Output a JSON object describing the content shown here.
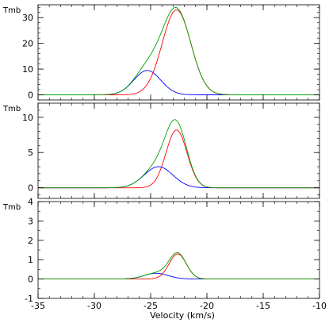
{
  "chart_data": {
    "type": "line",
    "xlabel": "Velocity (km/s)",
    "xlim": [
      -35,
      -10
    ],
    "xticks": [
      -35,
      -30,
      -25,
      -20,
      -15,
      -10
    ],
    "x_minor_step": 1,
    "panels": [
      {
        "ylabel": "Tmb",
        "ylim": [
          -2,
          35
        ],
        "yticks": [
          0,
          10,
          20,
          30
        ],
        "y_minor_step": 2,
        "series": [
          {
            "color": "#0000ff",
            "kind": "gaussian",
            "amp": 9.5,
            "center": -25.3,
            "fwhm": 2.8
          },
          {
            "color": "#ff0000",
            "kind": "gaussian",
            "amp": 33,
            "center": -22.7,
            "fwhm": 3.0
          },
          {
            "color": "#00a000",
            "kind": "sum"
          }
        ]
      },
      {
        "ylabel": "Tmb",
        "ylim": [
          -1.5,
          12
        ],
        "yticks": [
          0,
          5,
          10
        ],
        "y_minor_step": 1,
        "series": [
          {
            "color": "#0000ff",
            "kind": "gaussian",
            "amp": 3.0,
            "center": -24.3,
            "fwhm": 3.0
          },
          {
            "color": "#ff0000",
            "kind": "gaussian",
            "amp": 8.2,
            "center": -22.7,
            "fwhm": 2.2
          },
          {
            "color": "#00a000",
            "kind": "sum"
          }
        ]
      },
      {
        "ylabel": "Tmb",
        "ylim": [
          -1,
          4
        ],
        "yticks": [
          -1,
          0,
          1,
          2,
          3,
          4
        ],
        "y_minor_step": 0.5,
        "series": [
          {
            "color": "#0000ff",
            "kind": "gaussian",
            "amp": 0.3,
            "center": -24.5,
            "fwhm": 2.5
          },
          {
            "color": "#ff0000",
            "kind": "gaussian",
            "amp": 1.3,
            "center": -22.6,
            "fwhm": 1.8
          },
          {
            "color": "#00a000",
            "kind": "sum"
          }
        ]
      }
    ]
  }
}
